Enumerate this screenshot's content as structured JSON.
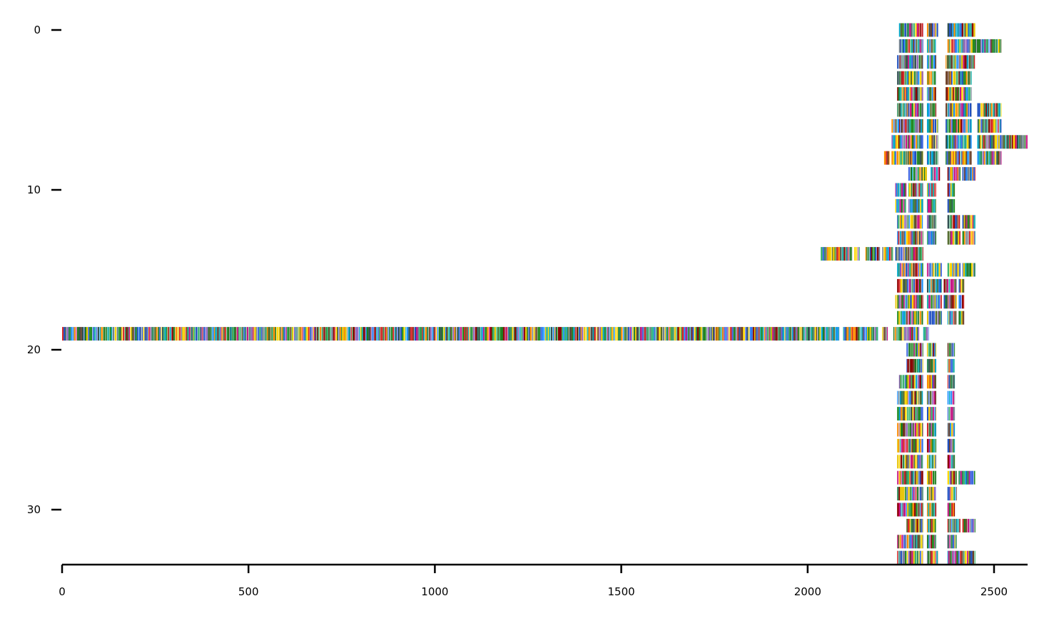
{
  "chart_data": {
    "type": "alignment-heatmap",
    "title": "",
    "xlabel": "",
    "ylabel": "",
    "xlim": [
      0,
      2590
    ],
    "ylim": [
      33.5,
      -0.5
    ],
    "xticks": [
      0,
      500,
      1000,
      1500,
      2000,
      2500
    ],
    "xtick_labels": [
      "0",
      "500",
      "1000",
      "1500",
      "2000",
      "2500"
    ],
    "yticks": [
      0,
      10,
      20,
      30
    ],
    "ytick_labels": [
      "0",
      "10",
      "20",
      "30"
    ],
    "grid": false,
    "legend": "none",
    "palette": [
      "#1f7a1f",
      "#2e8b57",
      "#3cb371",
      "#1e90ff",
      "#1f4fbf",
      "#00a6c8",
      "#d62728",
      "#8b0000",
      "#ff8c00",
      "#e6c200",
      "#9467bd",
      "#6b3e26",
      "#2f4f4f",
      "#556b2f",
      "#ffd700",
      "#20b2aa",
      "#c71585",
      "#708090",
      "#228b22",
      "#4169e1"
    ],
    "rows": [
      {
        "row": 0,
        "segments": [
          [
            2245,
            2310
          ],
          [
            2320,
            2350
          ],
          [
            2375,
            2450
          ]
        ]
      },
      {
        "row": 1,
        "segments": [
          [
            2245,
            2310
          ],
          [
            2320,
            2345
          ],
          [
            2375,
            2520
          ]
        ]
      },
      {
        "row": 2,
        "segments": [
          [
            2240,
            2310
          ],
          [
            2320,
            2345
          ],
          [
            2370,
            2450
          ]
        ]
      },
      {
        "row": 3,
        "segments": [
          [
            2240,
            2310
          ],
          [
            2320,
            2345
          ],
          [
            2370,
            2440
          ]
        ]
      },
      {
        "row": 4,
        "segments": [
          [
            2240,
            2310
          ],
          [
            2320,
            2345
          ],
          [
            2370,
            2440
          ]
        ]
      },
      {
        "row": 5,
        "segments": [
          [
            2240,
            2310
          ],
          [
            2320,
            2345
          ],
          [
            2370,
            2440
          ],
          [
            2455,
            2520
          ]
        ]
      },
      {
        "row": 6,
        "segments": [
          [
            2225,
            2310
          ],
          [
            2320,
            2350
          ],
          [
            2370,
            2440
          ],
          [
            2455,
            2520
          ]
        ]
      },
      {
        "row": 7,
        "segments": [
          [
            2225,
            2310
          ],
          [
            2320,
            2350
          ],
          [
            2370,
            2440
          ],
          [
            2455,
            2590
          ]
        ]
      },
      {
        "row": 8,
        "segments": [
          [
            2205,
            2220
          ],
          [
            2225,
            2310
          ],
          [
            2320,
            2350
          ],
          [
            2370,
            2440
          ],
          [
            2455,
            2520
          ]
        ]
      },
      {
        "row": 9,
        "segments": [
          [
            2270,
            2320
          ],
          [
            2330,
            2355
          ],
          [
            2375,
            2410
          ],
          [
            2415,
            2450
          ]
        ]
      },
      {
        "row": 10,
        "segments": [
          [
            2235,
            2265
          ],
          [
            2270,
            2310
          ],
          [
            2320,
            2345
          ],
          [
            2375,
            2395
          ]
        ]
      },
      {
        "row": 11,
        "segments": [
          [
            2235,
            2265
          ],
          [
            2270,
            2310
          ],
          [
            2320,
            2345
          ],
          [
            2375,
            2395
          ]
        ]
      },
      {
        "row": 12,
        "segments": [
          [
            2240,
            2310
          ],
          [
            2320,
            2345
          ],
          [
            2375,
            2410
          ],
          [
            2415,
            2450
          ]
        ]
      },
      {
        "row": 13,
        "segments": [
          [
            2240,
            2310
          ],
          [
            2320,
            2345
          ],
          [
            2375,
            2410
          ],
          [
            2415,
            2450
          ]
        ]
      },
      {
        "row": 14,
        "segments": [
          [
            2035,
            2120
          ],
          [
            2125,
            2140
          ],
          [
            2155,
            2195
          ],
          [
            2200,
            2230
          ],
          [
            2235,
            2310
          ]
        ]
      },
      {
        "row": 15,
        "segments": [
          [
            2240,
            2310
          ],
          [
            2320,
            2360
          ],
          [
            2375,
            2410
          ],
          [
            2415,
            2450
          ]
        ]
      },
      {
        "row": 16,
        "segments": [
          [
            2240,
            2310
          ],
          [
            2320,
            2360
          ],
          [
            2365,
            2400
          ],
          [
            2405,
            2420
          ]
        ]
      },
      {
        "row": 17,
        "segments": [
          [
            2235,
            2310
          ],
          [
            2320,
            2360
          ],
          [
            2365,
            2400
          ],
          [
            2405,
            2420
          ]
        ]
      },
      {
        "row": 18,
        "segments": [
          [
            2240,
            2310
          ],
          [
            2320,
            2360
          ],
          [
            2375,
            2400
          ],
          [
            2405,
            2420
          ]
        ]
      },
      {
        "row": 19,
        "segments": [
          [
            0,
            2085
          ],
          [
            2095,
            2190
          ],
          [
            2200,
            2215
          ],
          [
            2230,
            2300
          ],
          [
            2310,
            2325
          ]
        ]
      },
      {
        "row": 20,
        "segments": [
          [
            2265,
            2310
          ],
          [
            2320,
            2345
          ],
          [
            2375,
            2395
          ]
        ]
      },
      {
        "row": 21,
        "segments": [
          [
            2265,
            2310
          ],
          [
            2320,
            2345
          ],
          [
            2375,
            2395
          ]
        ]
      },
      {
        "row": 22,
        "segments": [
          [
            2245,
            2310
          ],
          [
            2320,
            2345
          ],
          [
            2375,
            2395
          ]
        ]
      },
      {
        "row": 23,
        "segments": [
          [
            2240,
            2310
          ],
          [
            2320,
            2345
          ],
          [
            2375,
            2395
          ]
        ]
      },
      {
        "row": 24,
        "segments": [
          [
            2240,
            2310
          ],
          [
            2320,
            2345
          ],
          [
            2375,
            2395
          ]
        ]
      },
      {
        "row": 25,
        "segments": [
          [
            2240,
            2310
          ],
          [
            2320,
            2345
          ],
          [
            2375,
            2395
          ]
        ]
      },
      {
        "row": 26,
        "segments": [
          [
            2240,
            2310
          ],
          [
            2320,
            2345
          ],
          [
            2375,
            2395
          ]
        ]
      },
      {
        "row": 27,
        "segments": [
          [
            2240,
            2310
          ],
          [
            2320,
            2345
          ],
          [
            2375,
            2395
          ]
        ]
      },
      {
        "row": 28,
        "segments": [
          [
            2240,
            2310
          ],
          [
            2320,
            2345
          ],
          [
            2375,
            2400
          ],
          [
            2405,
            2450
          ]
        ]
      },
      {
        "row": 29,
        "segments": [
          [
            2240,
            2310
          ],
          [
            2320,
            2345
          ],
          [
            2375,
            2400
          ]
        ]
      },
      {
        "row": 30,
        "segments": [
          [
            2240,
            2310
          ],
          [
            2320,
            2345
          ],
          [
            2375,
            2395
          ]
        ]
      },
      {
        "row": 31,
        "segments": [
          [
            2265,
            2310
          ],
          [
            2320,
            2345
          ],
          [
            2375,
            2410
          ],
          [
            2415,
            2450
          ]
        ]
      },
      {
        "row": 32,
        "segments": [
          [
            2240,
            2310
          ],
          [
            2320,
            2345
          ],
          [
            2375,
            2400
          ]
        ]
      },
      {
        "row": 33,
        "segments": [
          [
            2240,
            2310
          ],
          [
            2320,
            2350
          ],
          [
            2375,
            2450
          ]
        ]
      }
    ]
  }
}
